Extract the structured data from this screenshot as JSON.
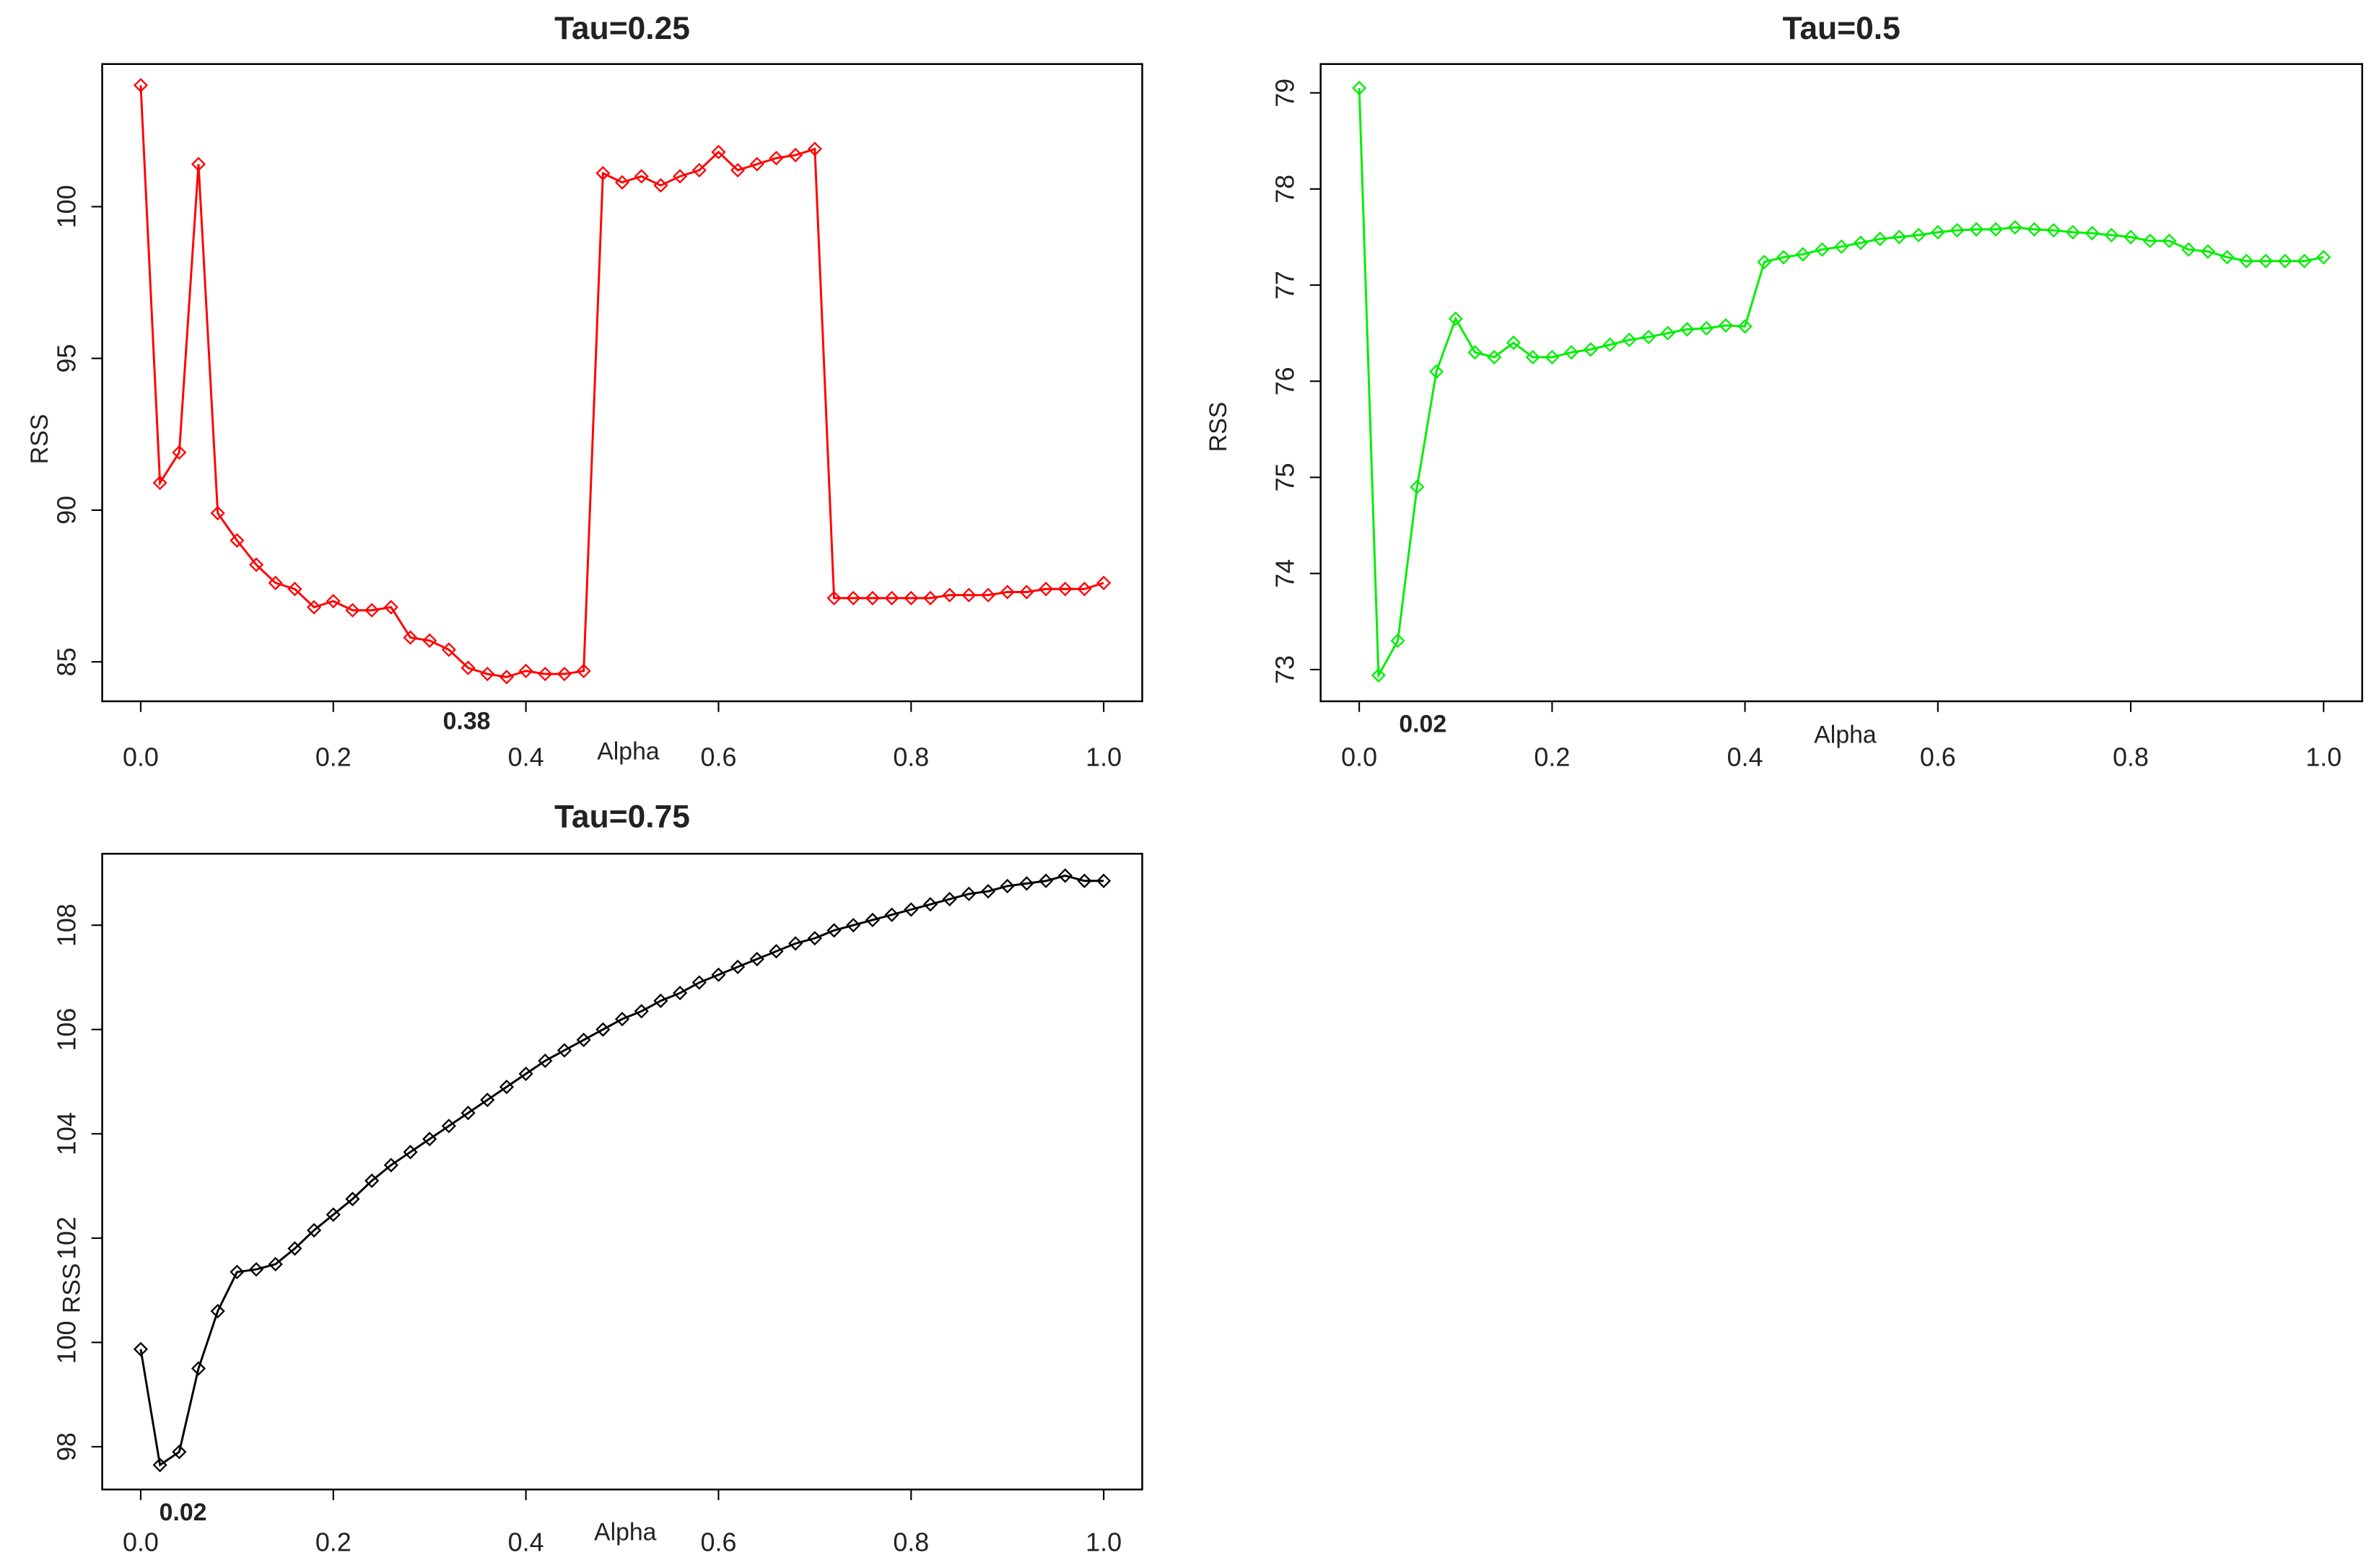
{
  "chart_data": [
    {
      "type": "line",
      "title": "Tau=0.25",
      "xlabel": "Alpha",
      "ylabel": "RSS",
      "annotation": "0.38",
      "color": "#ff0000",
      "x": [
        0,
        0.02,
        0.04,
        0.06,
        0.08,
        0.1,
        0.12,
        0.14,
        0.16,
        0.18,
        0.2,
        0.22,
        0.24,
        0.26,
        0.28,
        0.3,
        0.32,
        0.34,
        0.36,
        0.38,
        0.4,
        0.42,
        0.44,
        0.46,
        0.48,
        0.5,
        0.52,
        0.54,
        0.56,
        0.58,
        0.6,
        0.62,
        0.64,
        0.66,
        0.68,
        0.7,
        0.72,
        0.74,
        0.76,
        0.78,
        0.8,
        0.82,
        0.84,
        0.86,
        0.88,
        0.9,
        0.92,
        0.94,
        0.96,
        0.98,
        1
      ],
      "values": [
        104.0,
        90.9,
        91.9,
        101.4,
        89.9,
        89.0,
        88.2,
        87.6,
        87.4,
        86.8,
        87.0,
        86.7,
        86.7,
        86.8,
        85.8,
        85.7,
        85.4,
        84.8,
        84.6,
        84.5,
        84.7,
        84.6,
        84.6,
        84.7,
        101.1,
        100.8,
        101.0,
        100.7,
        101.0,
        101.2,
        101.8,
        101.2,
        101.4,
        101.6,
        101.7,
        101.9,
        87.1,
        87.1,
        87.1,
        87.1,
        87.1,
        87.1,
        87.2,
        87.2,
        87.2,
        87.3,
        87.3,
        87.4,
        87.4,
        87.4,
        87.6
      ],
      "xlim": [
        -0.04,
        1.04
      ],
      "ylim": [
        83.7,
        104.7
      ],
      "xticks": [
        {
          "value": 0,
          "label": "0.0"
        },
        0.2,
        0.4,
        0.6,
        0.8,
        {
          "value": 1,
          "label": "1.0"
        }
      ],
      "yticks": [
        85,
        90,
        95,
        100
      ]
    },
    {
      "type": "line",
      "title": "Tau=0.5",
      "xlabel": "Alpha",
      "ylabel": "RSS",
      "annotation": "0.02",
      "color": "#00ee00",
      "x": [
        0,
        0.02,
        0.04,
        0.06,
        0.08,
        0.1,
        0.12,
        0.14,
        0.16,
        0.18,
        0.2,
        0.22,
        0.24,
        0.26,
        0.28,
        0.3,
        0.32,
        0.34,
        0.36,
        0.38,
        0.4,
        0.42,
        0.44,
        0.46,
        0.48,
        0.5,
        0.52,
        0.54,
        0.56,
        0.58,
        0.6,
        0.62,
        0.64,
        0.66,
        0.68,
        0.7,
        0.72,
        0.74,
        0.76,
        0.78,
        0.8,
        0.82,
        0.84,
        0.86,
        0.88,
        0.9,
        0.92,
        0.94,
        0.96,
        0.98,
        1
      ],
      "values": [
        79.05,
        72.94,
        73.3,
        74.9,
        76.1,
        76.65,
        76.3,
        76.25,
        76.4,
        76.25,
        76.25,
        76.3,
        76.33,
        76.38,
        76.43,
        76.46,
        76.5,
        76.54,
        76.55,
        76.58,
        76.57,
        77.24,
        77.29,
        77.32,
        77.37,
        77.4,
        77.44,
        77.48,
        77.5,
        77.52,
        77.55,
        77.57,
        77.58,
        77.58,
        77.6,
        77.58,
        77.57,
        77.55,
        77.54,
        77.52,
        77.5,
        77.46,
        77.46,
        77.37,
        77.35,
        77.29,
        77.25,
        77.25,
        77.25,
        77.25,
        77.29
      ],
      "xlim": [
        -0.04,
        1.04
      ],
      "ylim": [
        72.67,
        79.3
      ],
      "xticks": [
        {
          "value": 0,
          "label": "0.0"
        },
        0.2,
        0.4,
        0.6,
        0.8,
        {
          "value": 1,
          "label": "1.0"
        }
      ],
      "yticks": [
        73,
        74,
        75,
        76,
        77,
        78,
        79
      ]
    },
    {
      "type": "line",
      "title": "Tau=0.75",
      "xlabel": "Alpha",
      "ylabel": "RSS",
      "annotation": "0.02",
      "color": "#000000",
      "x": [
        0,
        0.02,
        0.04,
        0.06,
        0.08,
        0.1,
        0.12,
        0.14,
        0.16,
        0.18,
        0.2,
        0.22,
        0.24,
        0.26,
        0.28,
        0.3,
        0.32,
        0.34,
        0.36,
        0.38,
        0.4,
        0.42,
        0.44,
        0.46,
        0.48,
        0.5,
        0.52,
        0.54,
        0.56,
        0.58,
        0.6,
        0.62,
        0.64,
        0.66,
        0.68,
        0.7,
        0.72,
        0.74,
        0.76,
        0.78,
        0.8,
        0.82,
        0.84,
        0.86,
        0.88,
        0.9,
        0.92,
        0.94,
        0.96,
        0.98,
        1
      ],
      "values": [
        99.87,
        97.65,
        97.9,
        99.5,
        100.6,
        101.35,
        101.4,
        101.5,
        101.8,
        102.15,
        102.45,
        102.75,
        103.1,
        103.4,
        103.65,
        103.9,
        104.15,
        104.4,
        104.65,
        104.9,
        105.15,
        105.4,
        105.6,
        105.8,
        106.0,
        106.2,
        106.35,
        106.55,
        106.7,
        106.9,
        107.05,
        107.2,
        107.35,
        107.5,
        107.65,
        107.75,
        107.9,
        108.0,
        108.1,
        108.2,
        108.3,
        108.4,
        108.5,
        108.6,
        108.65,
        108.75,
        108.8,
        108.85,
        108.95,
        108.85,
        108.85
      ],
      "xlim": [
        -0.04,
        1.04
      ],
      "ylim": [
        97.18,
        109.37
      ],
      "xticks": [
        {
          "value": 0,
          "label": "0.0"
        },
        0.2,
        0.4,
        0.6,
        0.8,
        {
          "value": 1,
          "label": "1.0"
        }
      ],
      "yticks": [
        98,
        100,
        102,
        104,
        106,
        108
      ]
    }
  ]
}
